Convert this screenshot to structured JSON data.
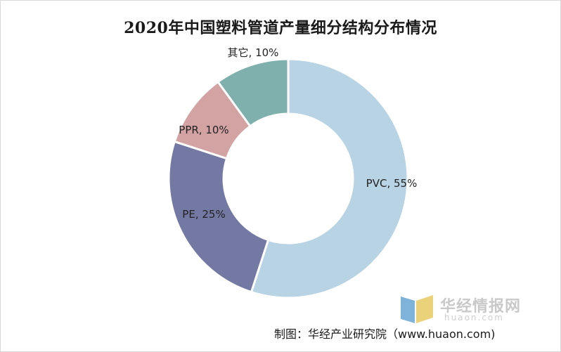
{
  "chart_data": {
    "type": "pie",
    "title": "2020年中国塑料管道产量细分结构分布情况",
    "slices": [
      {
        "label": "PVC",
        "value": 55,
        "color": "#b8d3e4",
        "display": "PVC, 55%"
      },
      {
        "label": "PE",
        "value": 25,
        "color": "#7379a3",
        "display": "PE, 25%"
      },
      {
        "label": "PPR",
        "value": 10,
        "color": "#d3a3a3",
        "display": "PPR, 10%"
      },
      {
        "label": "其它",
        "value": 10,
        "color": "#7fb0ae",
        "display": "其它, 10%"
      }
    ],
    "donut": true,
    "start": "top",
    "direction": "clockwise"
  },
  "watermark": {
    "brand": "华经情报网",
    "url": "huaon.com",
    "colors": {
      "blue": "#7fb3d9",
      "yellow": "#ead27a"
    }
  },
  "source": "制图：华经产业研究院（www.huaon.com)"
}
